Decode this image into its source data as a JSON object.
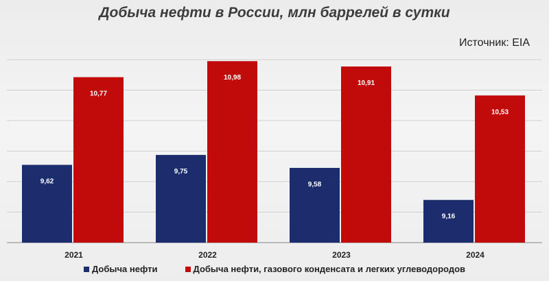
{
  "header": {
    "title": "Добыча нефти в России, млн баррелей в сутки",
    "source": "Источник: EIA"
  },
  "colors": {
    "series1": "#1c2d6e",
    "series2": "#c10a0a",
    "grid": "#cfcfcf",
    "axis": "#9a9a9a"
  },
  "chart_data": {
    "type": "bar",
    "title": "Добыча нефти в России, млн баррелей в сутки",
    "xlabel": "",
    "ylabel": "",
    "categories": [
      "2021",
      "2022",
      "2023",
      "2024"
    ],
    "series": [
      {
        "name": "Добыча нефти",
        "values": [
          9.62,
          9.75,
          9.58,
          9.16
        ],
        "labels": [
          "9,62",
          "9,75",
          "9,58",
          "9,16"
        ]
      },
      {
        "name": "Добыча нефти, газового конденсата и легких углеводородов",
        "values": [
          10.77,
          10.98,
          10.91,
          10.53
        ],
        "labels": [
          "10,77",
          "10,98",
          "10,91",
          "10,53"
        ]
      }
    ],
    "ylim": [
      8.6,
      11.0
    ],
    "grid": true,
    "legend": "bottom"
  }
}
